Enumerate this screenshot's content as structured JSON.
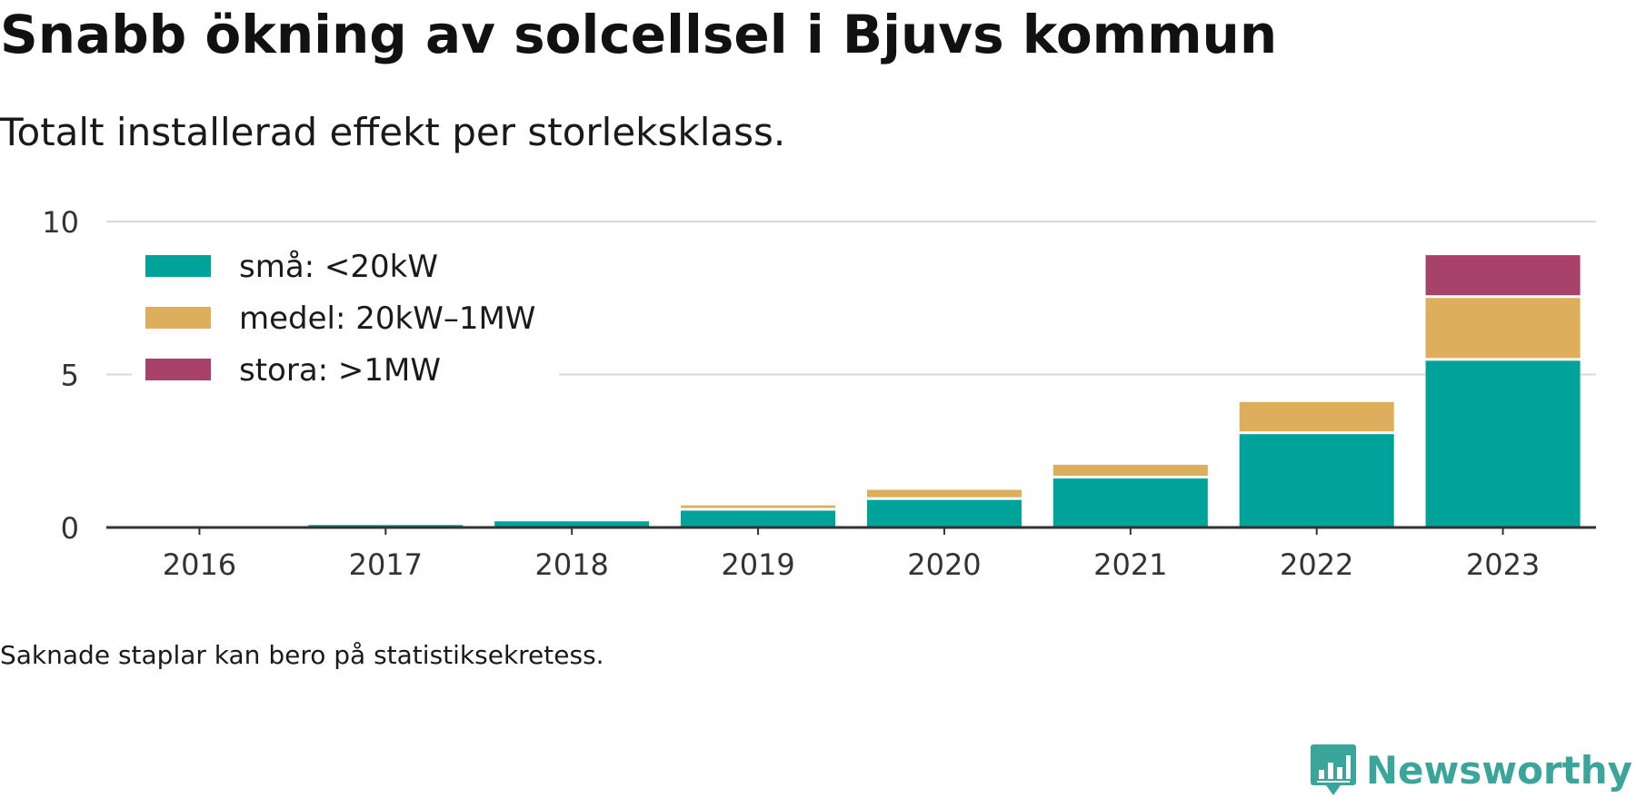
{
  "title": "Snabb ökning av solcellsel i Bjuvs kommun",
  "subtitle": "Totalt installerad effekt per storleksklass.",
  "note": "Saknade staplar kan bero på statistiksekretess.",
  "brand": {
    "name": "Newsworthy",
    "icon": "newsworthy-logo-icon",
    "color": "#3aa59a"
  },
  "chart_data": {
    "type": "bar",
    "stacked": true,
    "categories": [
      "2016",
      "2017",
      "2018",
      "2019",
      "2020",
      "2021",
      "2022",
      "2023"
    ],
    "series": [
      {
        "name": "små: <20kW",
        "color": "#00a39a",
        "values": [
          0.02,
          0.08,
          0.2,
          0.55,
          0.9,
          1.6,
          3.05,
          5.45
        ]
      },
      {
        "name": "medel: 20kW–1MW",
        "color": "#ddae5b",
        "values": [
          0,
          0,
          0,
          0.17,
          0.33,
          0.45,
          1.05,
          2.05
        ]
      },
      {
        "name": "stora: >1MW",
        "color": "#a8426a",
        "values": [
          0,
          0,
          0,
          0,
          0,
          0,
          0,
          1.4
        ]
      }
    ],
    "yticks": [
      0,
      5,
      10
    ],
    "ylim": [
      0,
      10
    ],
    "xlabel": "",
    "ylabel": "",
    "grid": true,
    "legend_position": "top-left"
  }
}
